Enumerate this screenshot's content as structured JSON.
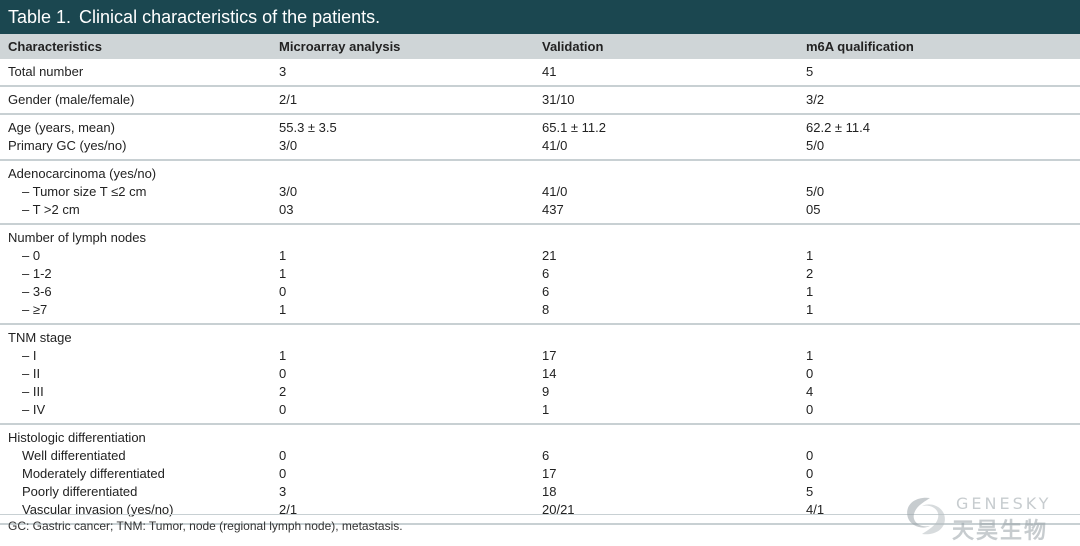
{
  "title": {
    "label": "Table 1.",
    "text": "Clinical characteristics of the patients."
  },
  "headers": [
    "Characteristics",
    "Microarray analysis",
    "Validation",
    "m6A qualification"
  ],
  "groups": [
    {
      "rows": [
        {
          "label": "Total number",
          "indent": false,
          "values": [
            "3",
            "41",
            "5"
          ]
        }
      ]
    },
    {
      "rows": [
        {
          "label": "Gender (male/female)",
          "indent": false,
          "values": [
            "2/1",
            "31/10",
            "3/2"
          ]
        }
      ]
    },
    {
      "rows": [
        {
          "label": "Age (years, mean)",
          "indent": false,
          "values": [
            "55.3 ± 3.5",
            "65.1 ± 11.2",
            "62.2 ± 11.4"
          ]
        },
        {
          "label": "Primary GC (yes/no)",
          "indent": false,
          "values": [
            "3/0",
            "41/0",
            "5/0"
          ]
        }
      ]
    },
    {
      "rows": [
        {
          "label": "Adenocarcinoma (yes/no)",
          "indent": false,
          "values": [
            "",
            "",
            ""
          ]
        },
        {
          "label": "– Tumor size T ≤2 cm",
          "indent": true,
          "values": [
            "3/0",
            "41/0",
            "5/0"
          ]
        },
        {
          "label": "– T >2 cm",
          "indent": true,
          "values": [
            "03",
            "437",
            "05"
          ]
        }
      ]
    },
    {
      "rows": [
        {
          "label": "Number of lymph nodes",
          "indent": false,
          "values": [
            "",
            "",
            ""
          ]
        },
        {
          "label": "– 0",
          "indent": true,
          "values": [
            "1",
            "21",
            "1"
          ]
        },
        {
          "label": "–  1-2",
          "indent": true,
          "values": [
            "1",
            "6",
            "2"
          ]
        },
        {
          "label": "– 3-6",
          "indent": true,
          "values": [
            "0",
            "6",
            "1"
          ]
        },
        {
          "label": "– ≥7",
          "indent": true,
          "values": [
            "1",
            "8",
            "1"
          ]
        }
      ]
    },
    {
      "rows": [
        {
          "label": "TNM stage",
          "indent": false,
          "values": [
            "",
            "",
            ""
          ]
        },
        {
          "label": "– I",
          "indent": true,
          "values": [
            "1",
            "17",
            "1"
          ]
        },
        {
          "label": "– II",
          "indent": true,
          "values": [
            "0",
            "14",
            "0"
          ]
        },
        {
          "label": "– III",
          "indent": true,
          "values": [
            "2",
            "9",
            "4"
          ]
        },
        {
          "label": "– IV",
          "indent": true,
          "values": [
            "0",
            "1",
            "0"
          ]
        }
      ]
    },
    {
      "rows": [
        {
          "label": "Histologic differentiation",
          "indent": false,
          "values": [
            "",
            "",
            ""
          ]
        },
        {
          "label": "Well differentiated",
          "indent": true,
          "values": [
            "0",
            "6",
            "0"
          ]
        },
        {
          "label": "Moderately differentiated",
          "indent": true,
          "values": [
            "0",
            "17",
            "0"
          ]
        },
        {
          "label": "Poorly differentiated",
          "indent": true,
          "values": [
            "3",
            "18",
            "5"
          ]
        },
        {
          "label": "Vascular invasion (yes/no)",
          "indent": true,
          "values": [
            "2/1",
            "20/21",
            "4/1"
          ]
        }
      ]
    }
  ],
  "footnote": "GC: Gastric cancer; TNM: Tumor, node (regional lymph node), metastasis.",
  "watermark": {
    "line1": "GENESKY",
    "line2": "天昊生物"
  },
  "colors": {
    "title_bg": "#1b4750",
    "header_bg": "#cfd5d7",
    "rule": "#c8d0d3"
  }
}
